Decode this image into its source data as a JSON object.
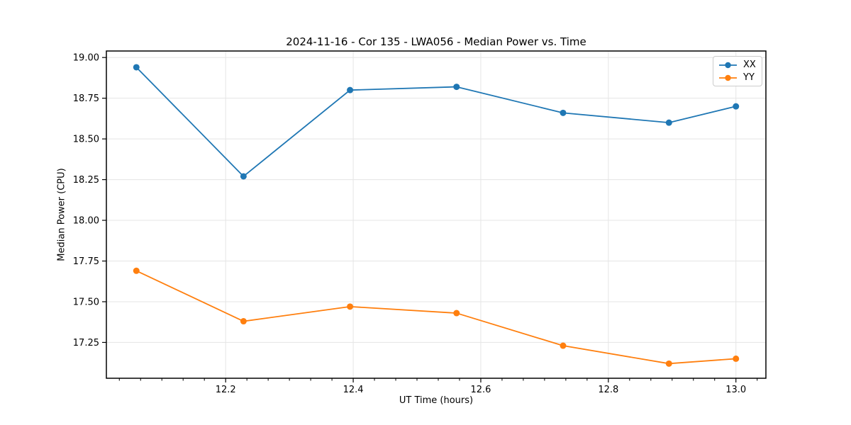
{
  "chart_data": {
    "type": "line",
    "title": "2024-11-16 - Cor 135 - LWA056 - Median Power vs. Time",
    "xlabel": "UT Time (hours)",
    "ylabel": "Median Power (CPU)",
    "x": [
      12.06,
      12.228,
      12.395,
      12.562,
      12.729,
      12.895,
      13.0
    ],
    "series": [
      {
        "name": "XX",
        "color": "#1f77b4",
        "values": [
          18.94,
          18.27,
          18.8,
          18.82,
          18.66,
          18.6,
          18.7
        ]
      },
      {
        "name": "YY",
        "color": "#ff7f0e",
        "values": [
          17.69,
          17.38,
          17.47,
          17.43,
          17.23,
          17.12,
          17.15
        ]
      }
    ],
    "xlim": [
      12.013,
      13.047
    ],
    "ylim": [
      17.03,
      19.04
    ],
    "xticks": [
      12.2,
      12.4,
      12.6,
      12.8,
      13.0
    ],
    "xtick_labels": [
      "12.2",
      "12.4",
      "12.6",
      "12.8",
      "13.0"
    ],
    "yticks": [
      19.0,
      18.75,
      18.5,
      18.25,
      18.0,
      17.75,
      17.5,
      17.25
    ],
    "ytick_labels": [
      "19.00",
      "18.75",
      "18.50",
      "18.25",
      "18.00",
      "17.75",
      "17.50",
      "17.25"
    ],
    "x_minor_step": 0.0333333,
    "grid": true,
    "grid_color": "#e5e5e5",
    "legend_position": "top-right",
    "marker": "circle",
    "background": "#ffffff",
    "spine_color": "#000000"
  }
}
